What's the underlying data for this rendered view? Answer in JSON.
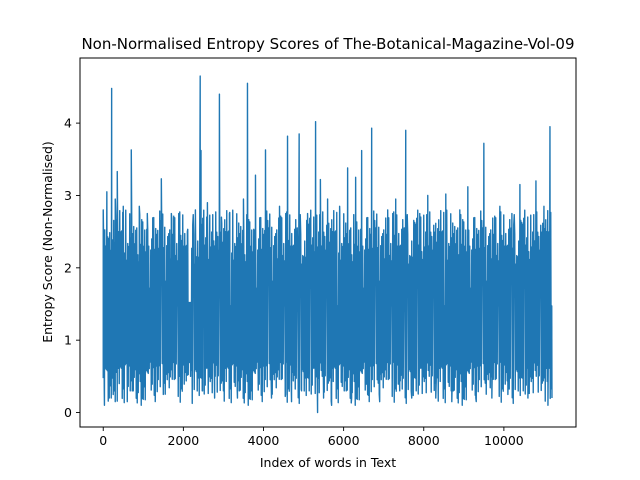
{
  "chart_data": {
    "type": "line",
    "title": "Non-Normalised Entropy Scores of The-Botanical-Magazine-Vol-09",
    "xlabel": "Index of words in Text",
    "ylabel": "Entropy Score (Non-Normalised)",
    "xlim": [
      -580,
      11800
    ],
    "ylim": [
      -0.2,
      4.9
    ],
    "x_ticks": [
      0,
      2000,
      4000,
      6000,
      8000,
      10000
    ],
    "y_ticks": [
      0,
      1,
      2,
      3,
      4
    ],
    "grid": false,
    "line_color": "#1f77b4",
    "n_points": 11220,
    "baseline_band": {
      "low": 0.1,
      "high": 2.75
    },
    "series": [
      {
        "x": [
          0,
          30,
          60,
          90,
          200,
          210,
          250,
          300,
          350,
          400,
          500,
          600,
          700,
          750,
          900,
          1100,
          1300,
          1450,
          1500,
          1700,
          1900,
          2100,
          2150,
          2180,
          2300,
          2420,
          2440,
          2480,
          2600,
          2780,
          2900,
          2950,
          3000,
          3150,
          3350,
          3500,
          3600,
          3700,
          3800,
          4050,
          4200,
          4400,
          4550,
          4600,
          4700,
          4890,
          4950,
          5100,
          5300,
          5350,
          5420,
          5500,
          5600,
          5700,
          5900,
          6100,
          6200,
          6300,
          6450,
          6600,
          6700,
          6900,
          7100,
          7300,
          7400,
          7550,
          7700,
          7900,
          8100,
          8300,
          8550,
          8700,
          8900,
          9100,
          9300,
          9500,
          9700,
          9900,
          10100,
          10200,
          10400,
          10600,
          10800,
          11000,
          11100,
          11150,
          11200
        ],
        "y": [
          2.8,
          0.1,
          2.3,
          3.05,
          0.2,
          4.48,
          0.3,
          2.95,
          3.33,
          0.4,
          2.85,
          0.15,
          3.63,
          0.3,
          2.85,
          2.75,
          0.2,
          3.23,
          0.25,
          2.75,
          0.5,
          2.5,
          1.52,
          0.5,
          2.8,
          4.65,
          3.62,
          0.3,
          2.9,
          0.2,
          4.4,
          2.7,
          0.3,
          2.75,
          0.2,
          2.95,
          4.55,
          0.3,
          3.28,
          3.63,
          0.2,
          2.85,
          0.25,
          3.82,
          0.15,
          3.85,
          0.3,
          2.75,
          4.02,
          0.0,
          3.22,
          0.2,
          2.95,
          0.1,
          2.85,
          3.38,
          0.2,
          3.25,
          3.62,
          0.25,
          3.93,
          0.15,
          2.8,
          2.95,
          0.3,
          3.9,
          0.2,
          2.75,
          3.0,
          0.2,
          3.02,
          0.15,
          2.8,
          3.12,
          0.2,
          3.72,
          0.2,
          2.85,
          0.25,
          2.75,
          3.15,
          0.2,
          3.2,
          2.85,
          0.1,
          3.95,
          0.2
        ]
      }
    ]
  }
}
